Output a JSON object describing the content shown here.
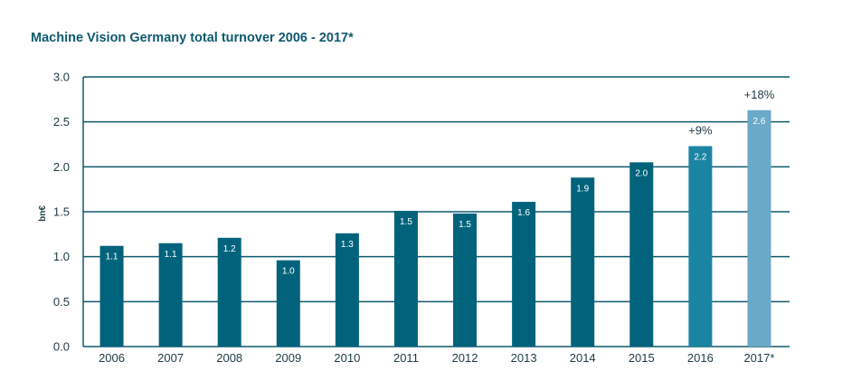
{
  "chart_data": {
    "type": "bar",
    "title": "Machine Vision Germany total turnover 2006 - 2017*",
    "xlabel": "",
    "ylabel": "bn€",
    "ylim": [
      0,
      3.0
    ],
    "yticks": [
      "0.0",
      "0.5",
      "1.0",
      "1.5",
      "2.0",
      "2.5",
      "3.0"
    ],
    "grid": true,
    "categories": [
      "2006",
      "2007",
      "2008",
      "2009",
      "2010",
      "2011",
      "2012",
      "2013",
      "2014",
      "2015",
      "2016",
      "2017*"
    ],
    "values": [
      1.12,
      1.15,
      1.21,
      0.96,
      1.26,
      1.51,
      1.48,
      1.61,
      1.88,
      2.05,
      2.23,
      2.63
    ],
    "data_labels": [
      "1.1",
      "1.1",
      "1.2",
      "1.0",
      "1.3",
      "1.5",
      "1.5",
      "1.6",
      "1.9",
      "2.0",
      "2.2",
      "2.6"
    ],
    "annotations": [
      {
        "category": "2016",
        "text": "+9%"
      },
      {
        "category": "2017*",
        "text": "+18%"
      }
    ],
    "colors": {
      "bar": "#00637b",
      "bar_2016": "#1b84a2",
      "bar_2017": "#6aaac8",
      "grid": "#0f5a6e",
      "title": "#0f5a6e"
    }
  }
}
